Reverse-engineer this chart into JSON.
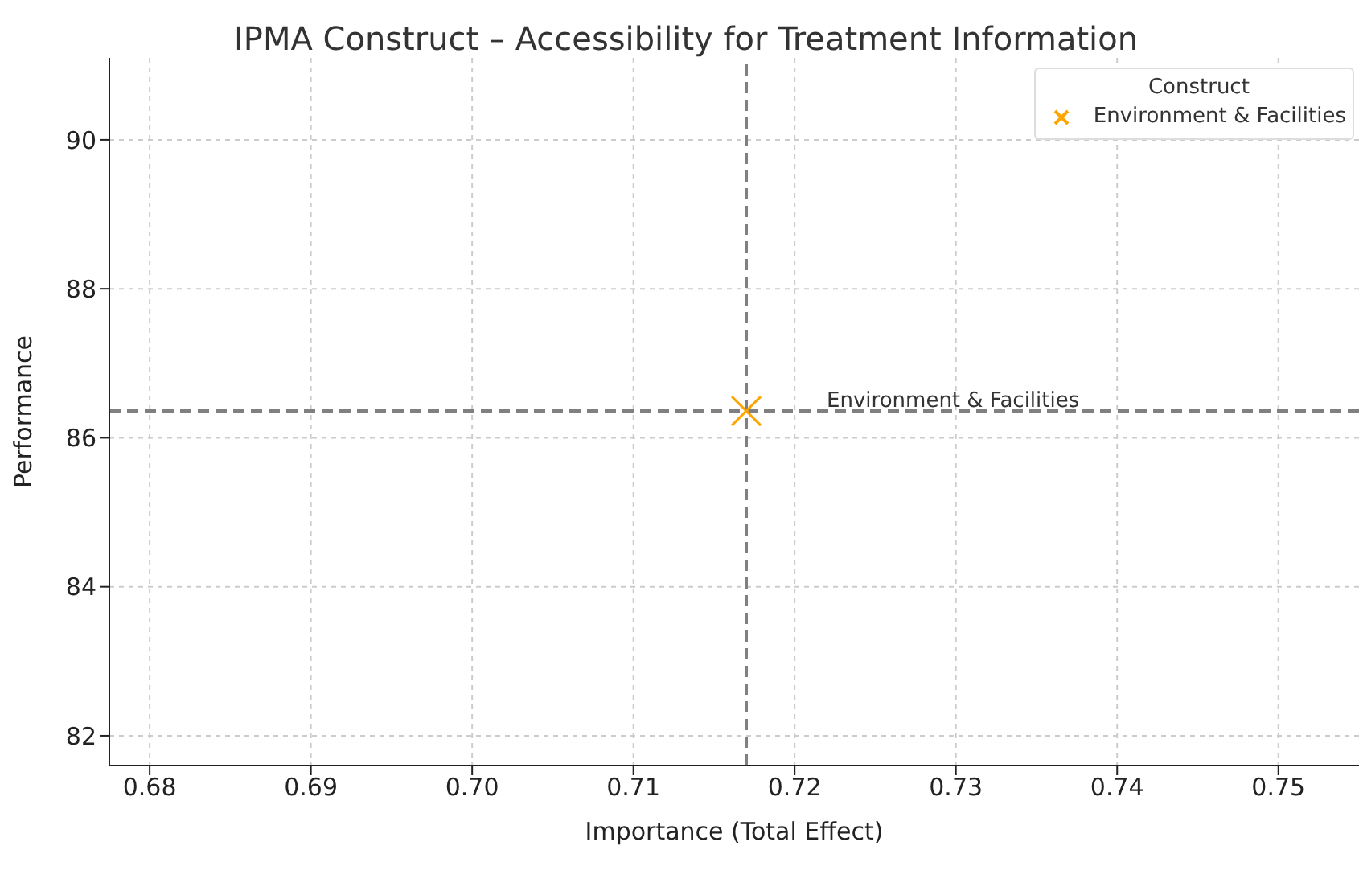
{
  "chart_data": {
    "type": "scatter",
    "title": "IPMA Construct – Accessibility for Treatment Information",
    "xlabel": "Importance (Total Effect)",
    "ylabel": "Performance",
    "legend_title": "Construct",
    "series": [
      {
        "name": "Environment & Facilities",
        "color": "#ffa500",
        "x": [
          0.717
        ],
        "values": [
          86.36
        ]
      }
    ],
    "xlim": [
      0.6775,
      0.755
    ],
    "xticks": [
      {
        "value": 0.68,
        "label": "0.68"
      },
      {
        "value": 0.69,
        "label": "0.69"
      },
      {
        "value": 0.7,
        "label": "0.70"
      },
      {
        "value": 0.71,
        "label": "0.71"
      },
      {
        "value": 0.72,
        "label": "0.72"
      },
      {
        "value": 0.73,
        "label": "0.73"
      },
      {
        "value": 0.74,
        "label": "0.74"
      },
      {
        "value": 0.75,
        "label": "0.75"
      }
    ],
    "ylim": [
      81.6,
      91.1
    ],
    "yticks": [
      82,
      84,
      86,
      88,
      90
    ],
    "ref_lines": [
      {
        "axis": "x",
        "value": 0.717,
        "color": "#808080",
        "line_style": "dashed"
      },
      {
        "axis": "y",
        "value": 86.36,
        "color": "#808080",
        "line_style": "dashed"
      }
    ],
    "annotations": [
      "Environment & Facilities"
    ],
    "grid": true,
    "legend": "top right",
    "marker": "cross"
  }
}
